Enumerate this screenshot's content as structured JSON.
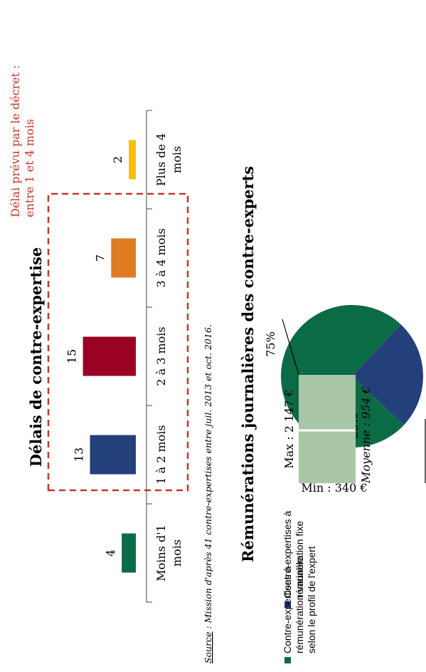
{
  "chart_data": [
    {
      "type": "bar",
      "title": "Délais de contre-expertise",
      "categories": [
        "Moins d'1 mois",
        "1 à 2 mois",
        "2 à 3 mois",
        "3 à 4 mois",
        "Plus de 4 mois"
      ],
      "values": [
        4,
        13,
        15,
        7,
        2
      ],
      "colors": [
        "#0b6b45",
        "#24407a",
        "#9b0025",
        "#e07b23",
        "#f5c000"
      ],
      "annotation": "Délai prévu par le décret : entre 1 et 4 mois",
      "annotation_color": "#c0392b",
      "source_prefix": "Source",
      "source_text": " : Mission d'après 41 contre-expertises entre juil. 2013 et oct. 2016."
    },
    {
      "type": "pie",
      "title": "Rémunérations journalières des contre-experts",
      "slices": [
        {
          "label": "Contre-expertises à rémunération fixe",
          "value": 25,
          "text": "25%",
          "color": "#24407a"
        },
        {
          "label": "Contre-expertises à rémunération variable selon le profil de l'expert",
          "value": 75,
          "text": "75%",
          "color": "#0b6b45"
        }
      ],
      "breakdown": {
        "color": "#a9c6a6",
        "max": "Max : 2 147 €",
        "mean": "Moyenne : 954 €",
        "min": "Min : 340 €"
      }
    }
  ],
  "legend": [
    {
      "lines": [
        "Contre-expertises à",
        "rémunération fixe"
      ],
      "color": "#24407a"
    },
    {
      "lines": [
        "Contre-expertises à",
        "rémunération variable",
        "selon le profil de l'expert"
      ],
      "color": "#0b6b45"
    }
  ]
}
